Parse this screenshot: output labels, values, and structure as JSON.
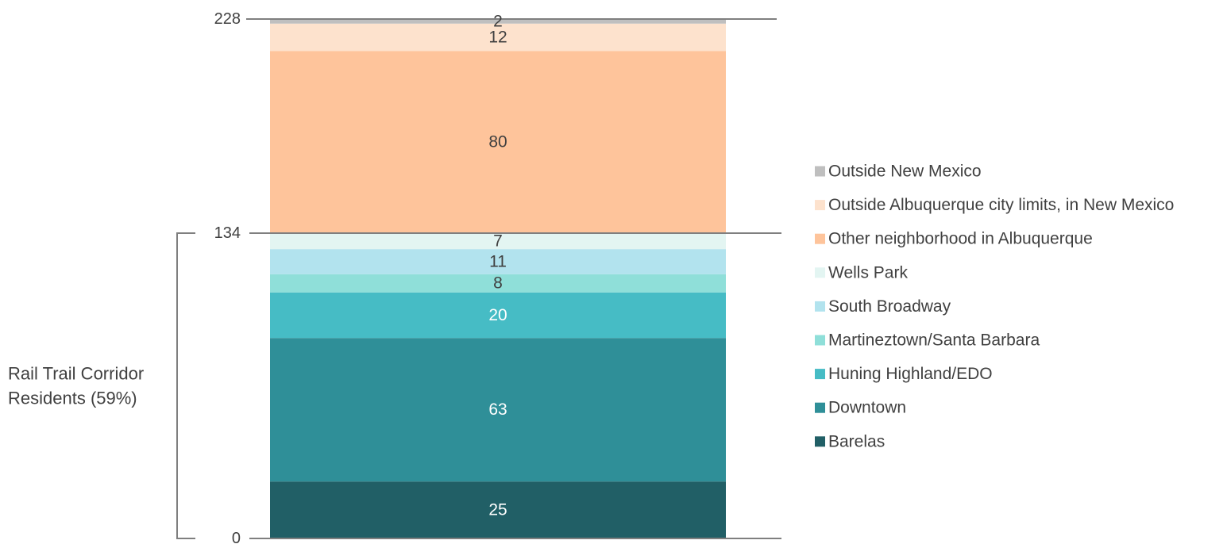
{
  "chart_data": {
    "type": "bar",
    "stacked": true,
    "ylim": [
      0,
      228
    ],
    "grid": false,
    "legend_placement": "right",
    "yticks": [
      {
        "value": 0,
        "label": "0"
      },
      {
        "value": 134,
        "label": "134"
      },
      {
        "value": 228,
        "label": "228"
      }
    ],
    "series": [
      {
        "name": "Barelas",
        "value": 25,
        "color": "#215f66",
        "label_color": "#ffffff"
      },
      {
        "name": "Downtown",
        "value": 63,
        "color": "#2f8f98",
        "label_color": "#ffffff"
      },
      {
        "name": "Huning Highland/EDO",
        "value": 20,
        "color": "#46bcc5",
        "label_color": "#ffffff"
      },
      {
        "name": "Martineztown/Santa Barbara",
        "value": 8,
        "color": "#8fdfd9",
        "label_color": "#404040"
      },
      {
        "name": "South Broadway",
        "value": 11,
        "color": "#b2e3ee",
        "label_color": "#404040"
      },
      {
        "name": "Wells Park",
        "value": 7,
        "color": "#e3f5f2",
        "label_color": "#404040"
      },
      {
        "name": "Other neighborhood in Albuquerque",
        "value": 80,
        "color": "#fec49b",
        "label_color": "#404040"
      },
      {
        "name": "Outside Albuquerque city limits, in New Mexico",
        "value": 12,
        "color": "#fde2cd",
        "label_color": "#404040"
      },
      {
        "name": "Outside New Mexico",
        "value": 2,
        "color": "#bfbfbf",
        "label_color": "#404040"
      }
    ],
    "annotation": {
      "lines": [
        "Rail Trail Corridor",
        "Residents (59%)"
      ],
      "from": 0,
      "to": 134
    }
  }
}
